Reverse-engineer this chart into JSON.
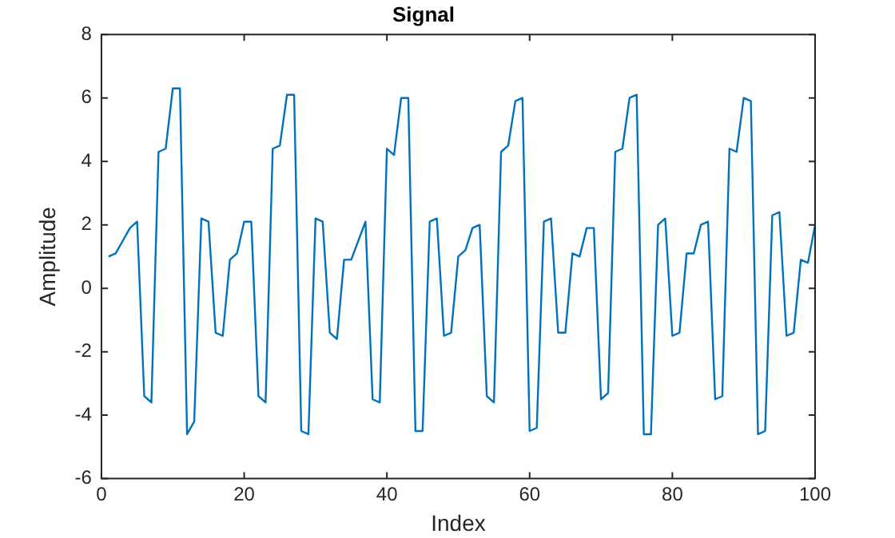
{
  "chart_data": {
    "type": "line",
    "title": "Signal",
    "xlabel": "Index",
    "ylabel": "Amplitude",
    "x": [
      1,
      2,
      3,
      4,
      5,
      6,
      7,
      8,
      9,
      10,
      11,
      12,
      13,
      14,
      15,
      16,
      17,
      18,
      19,
      20,
      21,
      22,
      23,
      24,
      25,
      26,
      27,
      28,
      29,
      30,
      31,
      32,
      33,
      34,
      35,
      36,
      37,
      38,
      39,
      40,
      41,
      42,
      43,
      44,
      45,
      46,
      47,
      48,
      49,
      50,
      51,
      52,
      53,
      54,
      55,
      56,
      57,
      58,
      59,
      60,
      61,
      62,
      63,
      64,
      65,
      66,
      67,
      68,
      69,
      70,
      71,
      72,
      73,
      74,
      75,
      76,
      77,
      78,
      79,
      80,
      81,
      82,
      83,
      84,
      85,
      86,
      87,
      88,
      89,
      90,
      91,
      92,
      93,
      94,
      95,
      96,
      97,
      98,
      99,
      100
    ],
    "series": [
      {
        "color": "#0072bd",
        "values": [
          1.0,
          1.1,
          1.5,
          1.9,
          2.1,
          -3.4,
          -3.6,
          4.3,
          4.4,
          6.3,
          6.3,
          -4.6,
          -4.2,
          2.2,
          2.1,
          -1.4,
          -1.5,
          0.9,
          1.1,
          2.1,
          2.1,
          -3.4,
          -3.6,
          4.4,
          4.5,
          6.1,
          6.1,
          -4.5,
          -4.6,
          2.2,
          2.1,
          -1.4,
          -1.6,
          0.9,
          0.9,
          1.5,
          2.1,
          -3.5,
          -3.6,
          4.4,
          4.2,
          6.0,
          6.0,
          -4.5,
          -4.5,
          2.1,
          2.2,
          -1.5,
          -1.4,
          1.0,
          1.2,
          1.9,
          2.0,
          -3.4,
          -3.6,
          4.3,
          4.5,
          5.9,
          6.0,
          -4.5,
          -4.4,
          2.1,
          2.2,
          -1.4,
          -1.4,
          1.1,
          1.0,
          1.9,
          1.9,
          -3.5,
          -3.3,
          4.3,
          4.4,
          6.0,
          6.1,
          -4.6,
          -4.6,
          2.0,
          2.2,
          -1.5,
          -1.4,
          1.1,
          1.1,
          2.0,
          2.1,
          -3.5,
          -3.4,
          4.4,
          4.3,
          6.0,
          5.9,
          -4.6,
          -4.5,
          2.3,
          2.4,
          -1.5,
          -1.4,
          0.9,
          0.8,
          2.0
        ]
      }
    ],
    "xlim": [
      0,
      100
    ],
    "xticks": [
      0,
      20,
      40,
      60,
      80,
      100
    ],
    "ylim": [
      -6,
      8
    ],
    "yticks": [
      -6,
      -4,
      -2,
      0,
      2,
      4,
      6,
      8
    ],
    "grid": false,
    "legend": false,
    "marker": "none",
    "line_style": "solid"
  }
}
